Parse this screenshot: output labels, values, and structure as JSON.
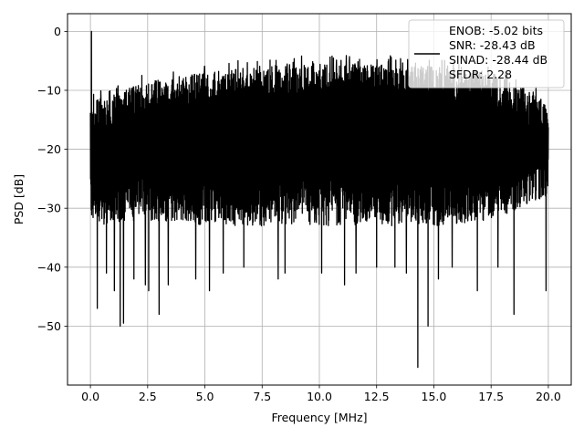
{
  "chart_data": {
    "type": "line",
    "title": "",
    "xlabel": "Frequency [MHz]",
    "ylabel": "PSD [dB]",
    "xlim": [
      -1.0,
      21.0
    ],
    "ylim": [
      -60.0,
      3.0
    ],
    "grid": true,
    "legend_position": "top-right",
    "line_color": "#000000",
    "x_ticks": [
      0.0,
      2.5,
      5.0,
      7.5,
      10.0,
      12.5,
      15.0,
      17.5,
      20.0
    ],
    "x_tick_labels": [
      "0.0",
      "2.5",
      "5.0",
      "7.5",
      "10.0",
      "12.5",
      "15.0",
      "17.5",
      "20.0"
    ],
    "y_ticks": [
      0,
      -10,
      -20,
      -30,
      -40,
      -50
    ],
    "y_tick_labels": [
      "0",
      "−10",
      "−20",
      "−30",
      "−40",
      "−50"
    ],
    "legend": {
      "lines": [
        "ENOB: -5.02 bits",
        "SNR: -28.43 dB",
        "SINAD: -28.44 dB",
        "SFDR: 2.28"
      ]
    },
    "series": [
      {
        "x_range": [
          0.0,
          20.0
        ],
        "peak": {
          "x": 0.05,
          "y": 0.0
        },
        "upper_envelope": {
          "x": [
            0.0,
            2.5,
            5.0,
            7.5,
            10.0,
            12.5,
            15.0,
            17.5,
            20.0
          ],
          "y": [
            -12.0,
            -8.5,
            -7.0,
            -6.0,
            -5.5,
            -5.5,
            -6.0,
            -7.0,
            -12.0
          ]
        },
        "lower_envelope": {
          "x": [
            0.0,
            2.5,
            5.0,
            7.5,
            10.0,
            12.5,
            15.0,
            17.5,
            20.0
          ],
          "y": [
            -33.0,
            -32.0,
            -33.0,
            -33.0,
            -33.0,
            -33.0,
            -33.0,
            -32.0,
            -28.0
          ]
        },
        "deep_nulls": [
          {
            "x": 0.3,
            "y": -47.0
          },
          {
            "x": 0.7,
            "y": -41.0
          },
          {
            "x": 1.05,
            "y": -44.0
          },
          {
            "x": 1.3,
            "y": -50.0
          },
          {
            "x": 1.45,
            "y": -49.5
          },
          {
            "x": 1.9,
            "y": -42.0
          },
          {
            "x": 2.4,
            "y": -43.0
          },
          {
            "x": 2.55,
            "y": -44.0
          },
          {
            "x": 3.0,
            "y": -48.0
          },
          {
            "x": 3.4,
            "y": -43.0
          },
          {
            "x": 4.6,
            "y": -42.0
          },
          {
            "x": 5.2,
            "y": -44.0
          },
          {
            "x": 5.8,
            "y": -41.0
          },
          {
            "x": 6.7,
            "y": -40.0
          },
          {
            "x": 8.2,
            "y": -42.0
          },
          {
            "x": 8.5,
            "y": -41.0
          },
          {
            "x": 10.1,
            "y": -41.0
          },
          {
            "x": 11.1,
            "y": -43.0
          },
          {
            "x": 11.6,
            "y": -41.0
          },
          {
            "x": 12.5,
            "y": -40.0
          },
          {
            "x": 13.3,
            "y": -40.0
          },
          {
            "x": 13.8,
            "y": -41.0
          },
          {
            "x": 14.3,
            "y": -57.0
          },
          {
            "x": 14.75,
            "y": -50.0
          },
          {
            "x": 15.2,
            "y": -42.0
          },
          {
            "x": 15.8,
            "y": -40.0
          },
          {
            "x": 16.9,
            "y": -44.0
          },
          {
            "x": 17.8,
            "y": -40.0
          },
          {
            "x": 18.5,
            "y": -48.0
          },
          {
            "x": 19.9,
            "y": -44.0
          }
        ]
      }
    ]
  }
}
